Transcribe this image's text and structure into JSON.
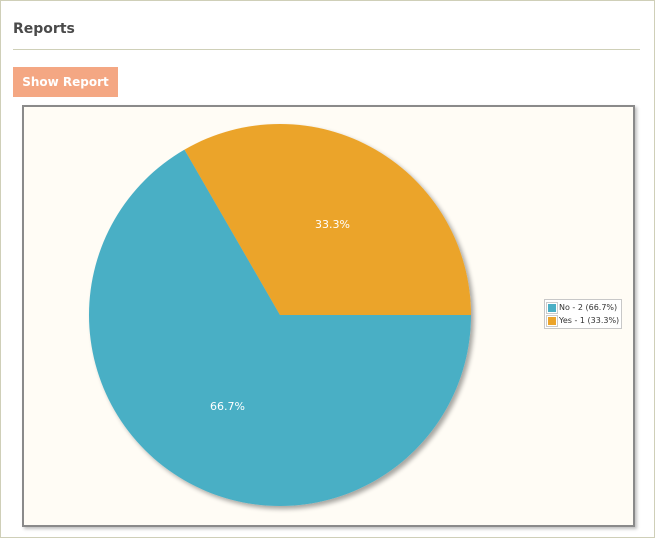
{
  "panel": {
    "title": "Reports",
    "show_report_label": "Show Report"
  },
  "chart_data": {
    "type": "pie",
    "slices": [
      {
        "name": "No",
        "value": 2,
        "percent_label": "66.7%",
        "legend_label": "No - 2 (66.7%)",
        "color": "#4aafc5"
      },
      {
        "name": "Yes",
        "value": 1,
        "percent_label": "33.3%",
        "legend_label": "Yes - 1 (33.3%)",
        "color": "#eba42b"
      }
    ],
    "legend_position": "right"
  }
}
